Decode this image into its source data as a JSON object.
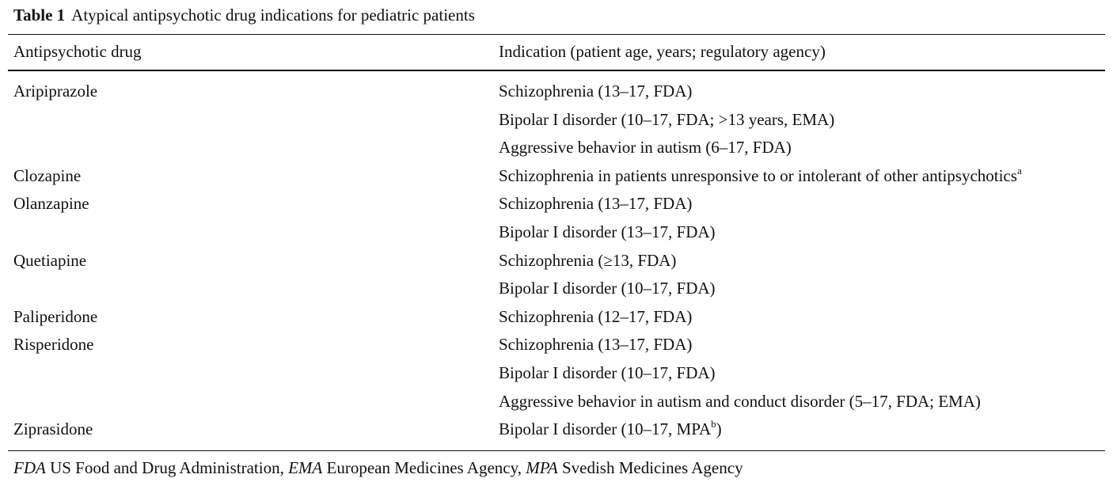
{
  "table": {
    "label": "Table 1",
    "title": "Atypical antipsychotic drug indications for pediatric patients",
    "headers": {
      "drug": "Antipsychotic drug",
      "indication": "Indication (patient age, years; regulatory agency)"
    },
    "rows": [
      {
        "drug": "Aripiprazole",
        "indication": "Schizophrenia (13–17, FDA)",
        "sup": "",
        "after": ""
      },
      {
        "drug": "",
        "indication": "Bipolar I disorder (10–17, FDA; >13 years, EMA)",
        "sup": "",
        "after": ""
      },
      {
        "drug": "",
        "indication": "Aggressive behavior in autism (6–17, FDA)",
        "sup": "",
        "after": ""
      },
      {
        "drug": "Clozapine",
        "indication": "Schizophrenia in patients unresponsive to or intolerant of other antipsychotics",
        "sup": "a",
        "after": ""
      },
      {
        "drug": "Olanzapine",
        "indication": "Schizophrenia (13–17, FDA)",
        "sup": "",
        "after": ""
      },
      {
        "drug": "",
        "indication": "Bipolar I disorder (13–17, FDA)",
        "sup": "",
        "after": ""
      },
      {
        "drug": "Quetiapine",
        "indication": "Schizophrenia (≥13, FDA)",
        "sup": "",
        "after": ""
      },
      {
        "drug": "",
        "indication": "Bipolar I disorder (10–17, FDA)",
        "sup": "",
        "after": ""
      },
      {
        "drug": "Paliperidone",
        "indication": "Schizophrenia (12–17, FDA)",
        "sup": "",
        "after": ""
      },
      {
        "drug": "Risperidone",
        "indication": "Schizophrenia (13–17, FDA)",
        "sup": "",
        "after": ""
      },
      {
        "drug": "",
        "indication": "Bipolar I disorder (10–17, FDA)",
        "sup": "",
        "after": ""
      },
      {
        "drug": "",
        "indication": "Aggressive behavior in autism and conduct disorder (5–17, FDA; EMA)",
        "sup": "",
        "after": ""
      },
      {
        "drug": "Ziprasidone",
        "indication": "Bipolar I disorder (10–17, MPA",
        "sup": "b",
        "after": ")"
      }
    ],
    "footnote": [
      {
        "abbr": "FDA",
        "text": " US Food and Drug Administration, "
      },
      {
        "abbr": "EMA",
        "text": " European Medicines Agency, "
      },
      {
        "abbr": "MPA",
        "text": " Svedish Medicines Agency"
      }
    ]
  }
}
